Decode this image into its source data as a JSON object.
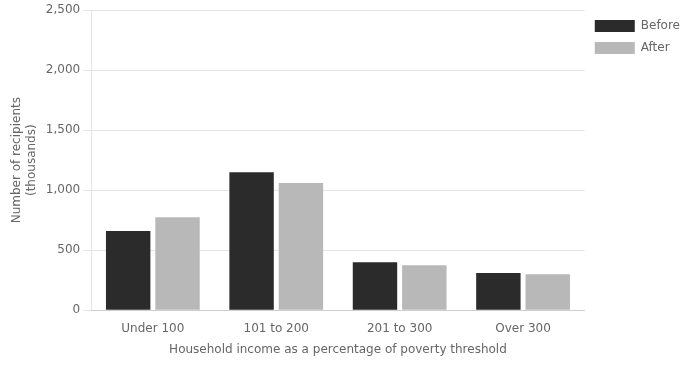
{
  "chart_data": {
    "type": "bar",
    "categories": [
      "Under 100",
      "101 to 200",
      "201 to 300",
      "Over 300"
    ],
    "series": [
      {
        "name": "Before",
        "color": "#2b2b2b",
        "values": [
          660,
          1150,
          400,
          310
        ]
      },
      {
        "name": "After",
        "color": "#b8b8b8",
        "values": [
          775,
          1060,
          375,
          300
        ]
      }
    ],
    "xlabel": "Household income as a percentage of poverty threshold",
    "ylabel": [
      "Number of recipients",
      "(thousands)"
    ],
    "ylim": [
      0,
      2500
    ],
    "yticks": [
      0,
      500,
      {
        "value": 1000,
        "label": "1,000"
      },
      {
        "value": 1500,
        "label": "1,500"
      },
      {
        "value": 2000,
        "label": "2,000"
      },
      {
        "value": 2500,
        "label": "2,500"
      }
    ],
    "grid": true,
    "legend": "right"
  }
}
